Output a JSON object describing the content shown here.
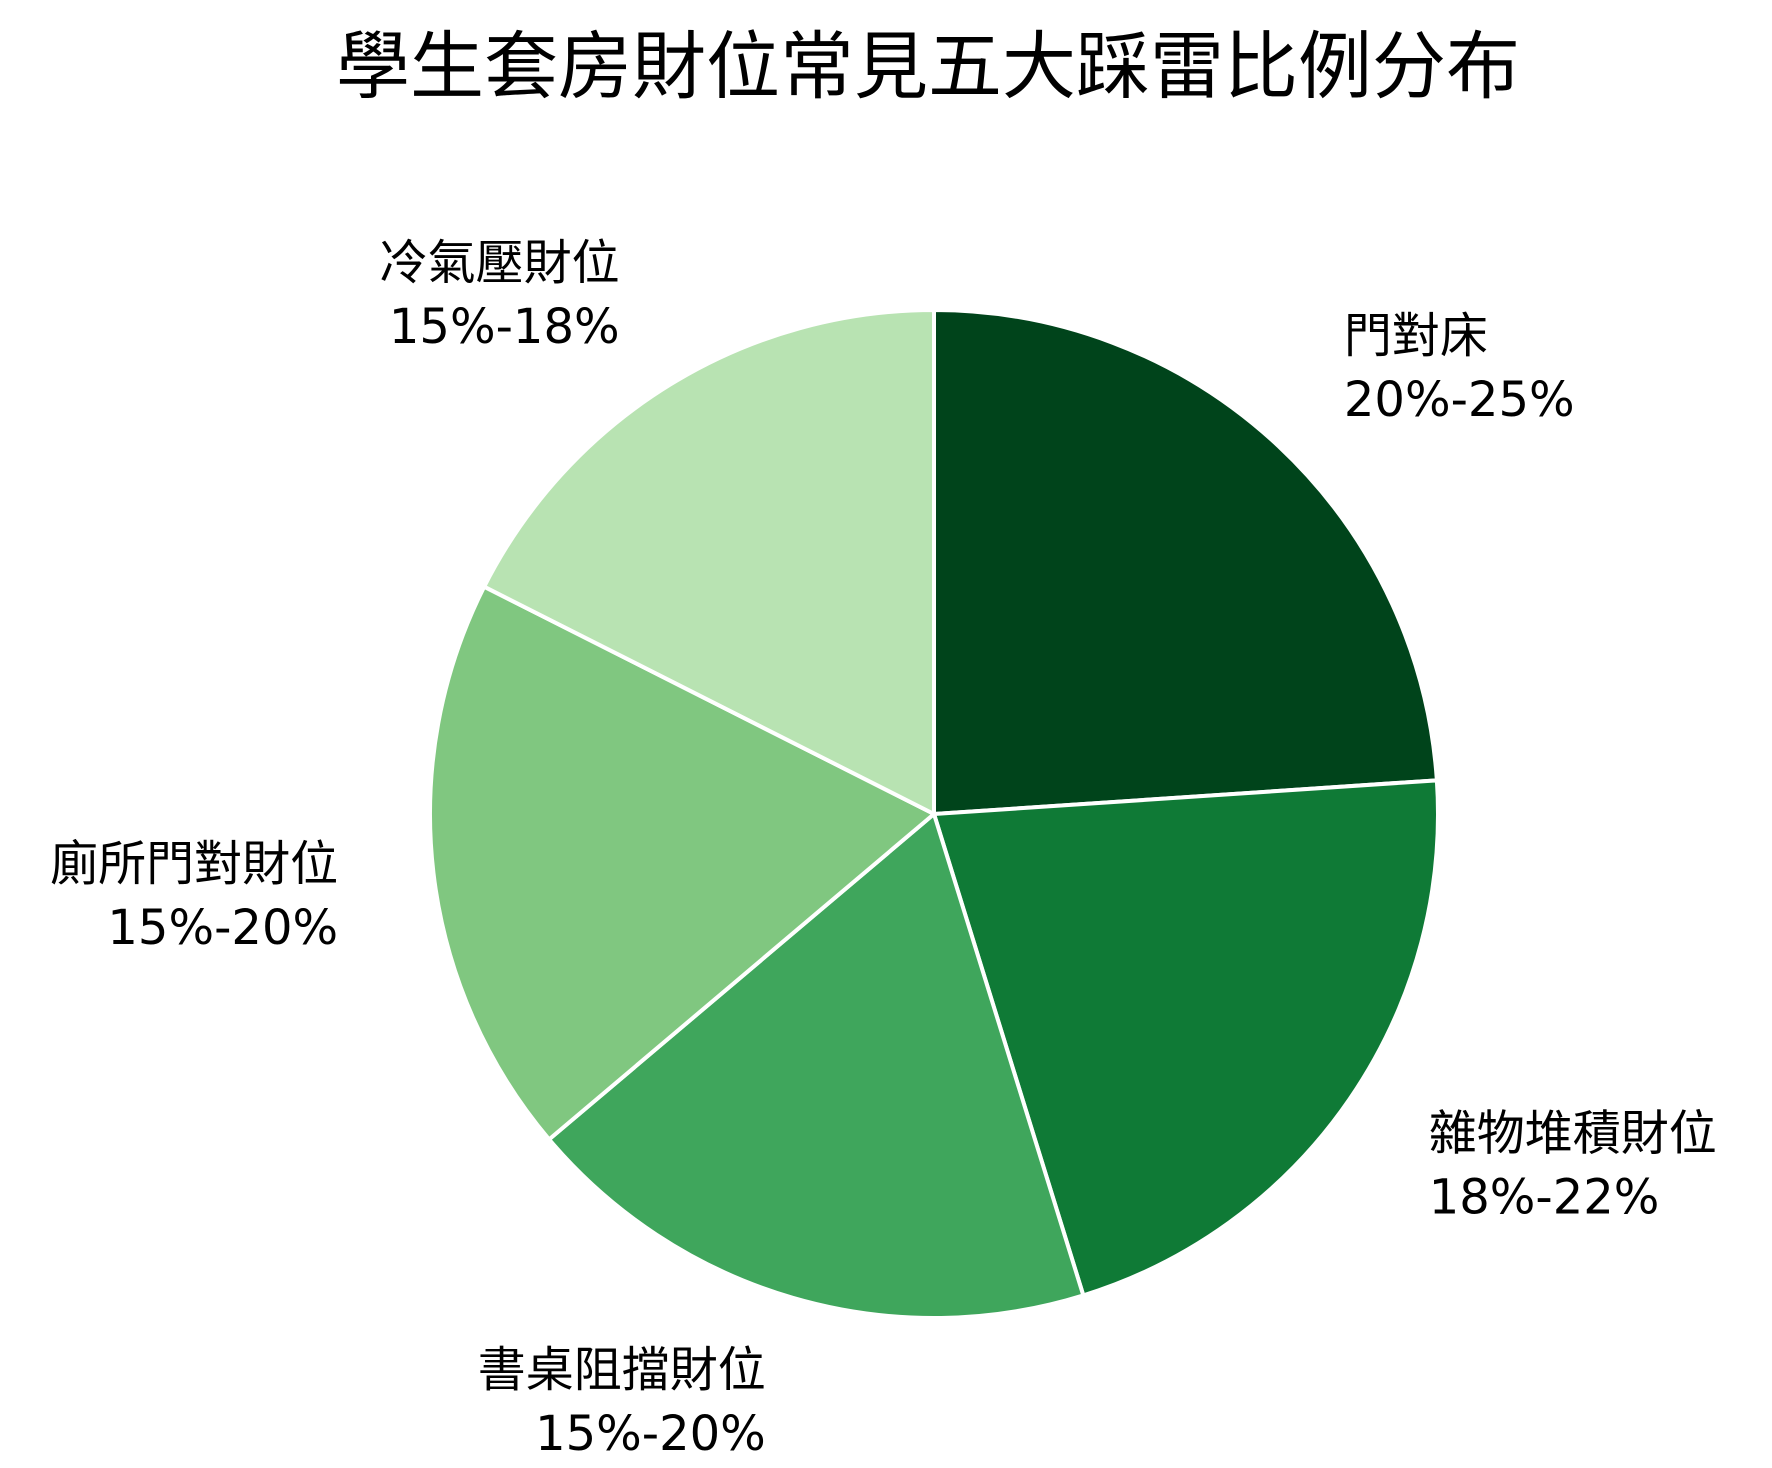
{
  "chart_data": {
    "type": "pie",
    "title": "學生套房財位常見五大踩雷比例分布",
    "start_angle_deg": 90,
    "direction": "clockwise",
    "slices": [
      {
        "label": "門對床",
        "range_text": "20%-25%",
        "value": 22.5,
        "color": "#00441b"
      },
      {
        "label": "雜物堆積財位",
        "range_text": "18%-22%",
        "value": 20,
        "color": "#0f7a36"
      },
      {
        "label": "書桌阻擋財位",
        "range_text": "15%-20%",
        "value": 17.5,
        "color": "#3fa65c"
      },
      {
        "label": "廁所門對財位",
        "range_text": "15%-20%",
        "value": 17.5,
        "color": "#80c780"
      },
      {
        "label": "冷氣壓財位",
        "range_text": "15%-18%",
        "value": 16.5,
        "color": "#b8e3b2"
      }
    ]
  }
}
